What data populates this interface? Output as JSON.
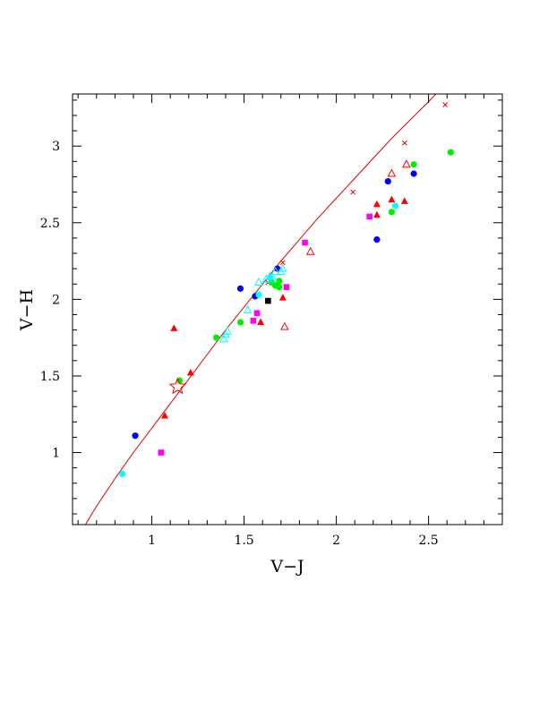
{
  "chart_data": {
    "type": "scatter",
    "title": "",
    "xlabel": "V−J",
    "ylabel": "V−H",
    "xlim": [
      0.57,
      2.9
    ],
    "ylim": [
      0.53,
      3.34
    ],
    "grid": false,
    "xticks": [
      {
        "value": 1,
        "label": "1"
      },
      {
        "value": 1.5,
        "label": "1.5"
      },
      {
        "value": 2,
        "label": "2"
      },
      {
        "value": 2.5,
        "label": "2.5"
      }
    ],
    "yticks": [
      {
        "value": 1,
        "label": "1"
      },
      {
        "value": 1.5,
        "label": "1.5"
      },
      {
        "value": 2,
        "label": "2"
      },
      {
        "value": 2.5,
        "label": "2.5"
      },
      {
        "value": 3,
        "label": "3"
      }
    ],
    "curve": {
      "color": "#e00000",
      "points": [
        [
          0.64,
          0.53
        ],
        [
          0.7,
          0.65
        ],
        [
          0.8,
          0.83
        ],
        [
          0.9,
          1.0
        ],
        [
          1.0,
          1.16
        ],
        [
          1.1,
          1.32
        ],
        [
          1.2,
          1.48
        ],
        [
          1.3,
          1.64
        ],
        [
          1.4,
          1.8
        ],
        [
          1.5,
          1.95
        ],
        [
          1.6,
          2.1
        ],
        [
          1.7,
          2.25
        ],
        [
          1.8,
          2.39
        ],
        [
          1.9,
          2.53
        ],
        [
          2.0,
          2.66
        ],
        [
          2.1,
          2.79
        ],
        [
          2.2,
          2.92
        ],
        [
          2.3,
          3.05
        ],
        [
          2.4,
          3.17
        ],
        [
          2.5,
          3.29
        ],
        [
          2.54,
          3.34
        ]
      ],
      "markers": [
        [
          1.63,
          2.11
        ],
        [
          1.71,
          2.24
        ],
        [
          2.09,
          2.7
        ],
        [
          2.37,
          3.02
        ],
        [
          2.59,
          3.27
        ]
      ]
    },
    "series": [
      {
        "marker": "circle",
        "color": "#0000ff",
        "points": [
          [
            0.91,
            1.11
          ],
          [
            1.48,
            2.07
          ],
          [
            1.56,
            2.02
          ],
          [
            1.68,
            2.2
          ],
          [
            2.22,
            2.39
          ],
          [
            2.28,
            2.77
          ],
          [
            2.42,
            2.82
          ]
        ]
      },
      {
        "marker": "circle",
        "color": "#00ffff",
        "points": [
          [
            0.84,
            0.86
          ],
          [
            1.58,
            2.03
          ],
          [
            1.64,
            2.14
          ],
          [
            2.32,
            2.61
          ]
        ]
      },
      {
        "marker": "circle",
        "color": "#00ee00",
        "points": [
          [
            1.15,
            1.47
          ],
          [
            1.35,
            1.75
          ],
          [
            1.48,
            1.85
          ],
          [
            1.65,
            2.11
          ],
          [
            1.67,
            2.09
          ],
          [
            1.69,
            2.12
          ],
          [
            1.69,
            2.08
          ],
          [
            2.3,
            2.57
          ],
          [
            2.42,
            2.88
          ],
          [
            2.62,
            2.96
          ]
        ]
      },
      {
        "marker": "square",
        "color": "#ff00ff",
        "points": [
          [
            1.05,
            1.0
          ],
          [
            1.55,
            1.86
          ],
          [
            1.57,
            1.91
          ],
          [
            1.73,
            2.08
          ],
          [
            1.83,
            2.37
          ],
          [
            2.18,
            2.54
          ]
        ]
      },
      {
        "marker": "square",
        "color": "#000000",
        "points": [
          [
            1.63,
            1.99
          ]
        ]
      },
      {
        "marker": "triangle-filled",
        "color": "#ff0000",
        "points": [
          [
            1.07,
            1.24
          ],
          [
            1.12,
            1.81
          ],
          [
            1.21,
            1.52
          ],
          [
            1.59,
            1.85
          ],
          [
            1.71,
            2.01
          ],
          [
            2.22,
            2.55
          ],
          [
            2.22,
            2.62
          ],
          [
            2.3,
            2.65
          ],
          [
            2.37,
            2.64
          ]
        ]
      },
      {
        "marker": "triangle-open",
        "color": "#ff0000",
        "points": [
          [
            1.72,
            1.82
          ],
          [
            1.86,
            2.31
          ],
          [
            2.3,
            2.82
          ],
          [
            2.38,
            2.88
          ]
        ]
      },
      {
        "marker": "triangle-open",
        "color": "#00ffff",
        "points": [
          [
            1.39,
            1.74
          ],
          [
            1.4,
            1.77
          ],
          [
            1.41,
            1.79
          ],
          [
            1.52,
            1.93
          ],
          [
            1.58,
            2.11
          ],
          [
            1.62,
            2.13
          ],
          [
            1.64,
            2.15
          ],
          [
            1.67,
            2.18
          ],
          [
            1.7,
            2.18
          ],
          [
            1.71,
            2.2
          ],
          [
            1.66,
            2.13
          ]
        ]
      },
      {
        "marker": "star-open",
        "color": "#ff0000",
        "points": [
          [
            1.14,
            1.43
          ]
        ]
      }
    ]
  }
}
